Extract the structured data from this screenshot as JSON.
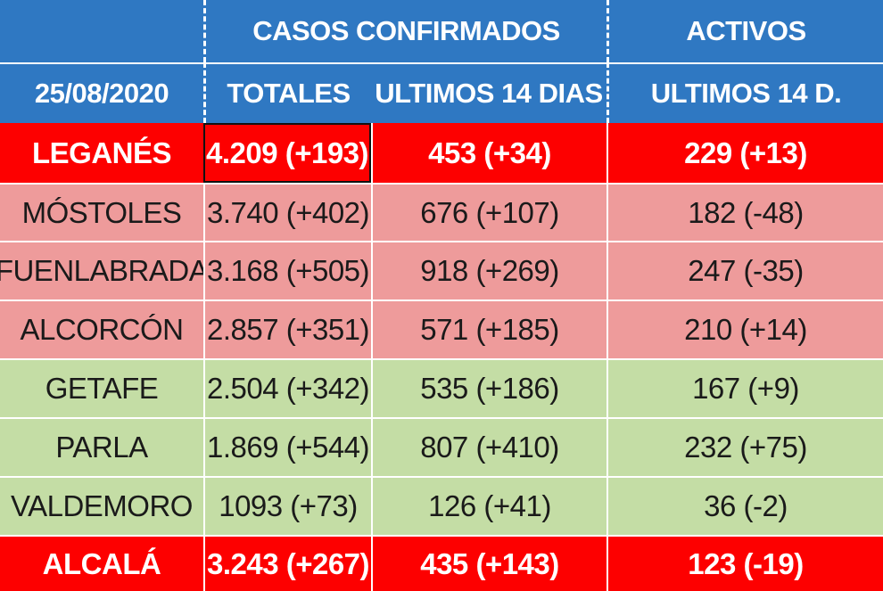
{
  "header": {
    "date": "25/08/2020",
    "group_confirmed": "CASOS  CONFIRMADOS",
    "group_active": "ACTIVOS",
    "col_total": "TOTALES",
    "col_14": "ULTIMOS 14 DIAS",
    "col_active14": "ULTIMOS 14 D."
  },
  "rows": [
    {
      "name": "LEGANÉS",
      "total": "4.209 (+193)",
      "last14": "453 (+34)",
      "active": "229 (+13)",
      "color": "#fd0000"
    },
    {
      "name": "MÓSTOLES",
      "total": "3.740 (+402)",
      "last14": "676 (+107)",
      "active": "182 (-48)",
      "color": "#ee9b9b"
    },
    {
      "name": "FUENLABRADA",
      "total": "3.168 (+505)",
      "last14": "918 (+269)",
      "active": "247 (-35)",
      "color": "#ee9b9b"
    },
    {
      "name": "ALCORCÓN",
      "total": "2.857 (+351)",
      "last14": "571 (+185)",
      "active": "210 (+14)",
      "color": "#ee9b9b"
    },
    {
      "name": "GETAFE",
      "total": "2.504 (+342)",
      "last14": "535 (+186)",
      "active": "167 (+9)",
      "color": "#c4dda5"
    },
    {
      "name": "PARLA",
      "total": "1.869 (+544)",
      "last14": "807 (+410)",
      "active": "232 (+75)",
      "color": "#c4dda5"
    },
    {
      "name": "VALDEMORO",
      "total": "1093 (+73)",
      "last14": "126 (+41)",
      "active": "36 (-2)",
      "color": "#c4dda5"
    },
    {
      "name": "ALCALÁ",
      "total": "3.243 (+267)",
      "last14": "435 (+143)",
      "active": "123 (-19)",
      "color": "#fd0000"
    }
  ]
}
